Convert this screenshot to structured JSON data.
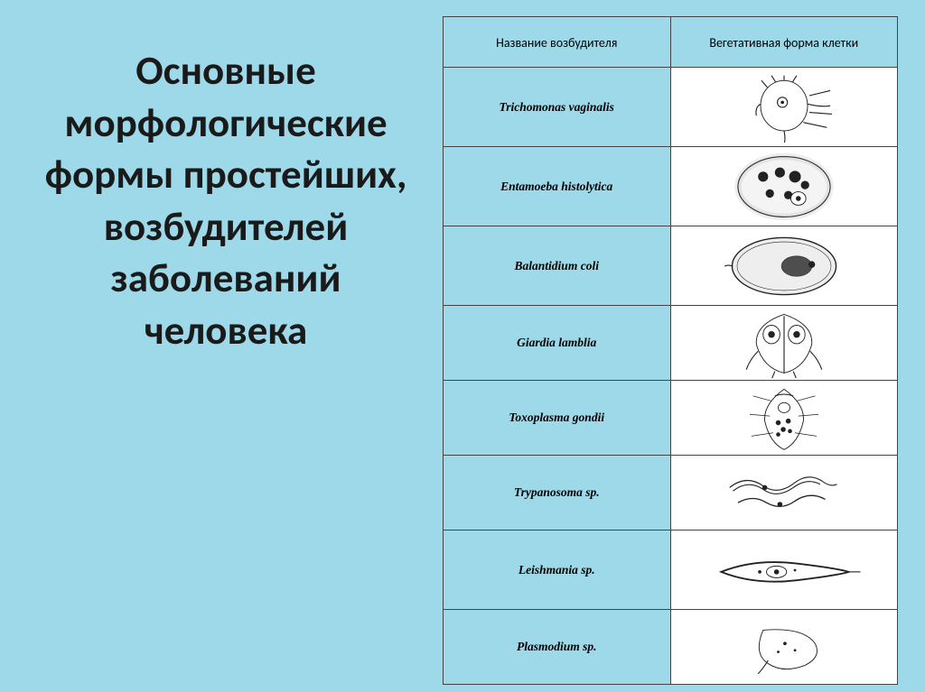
{
  "title": "Основные морфологические формы простейших, возбудителей заболеваний человека",
  "table": {
    "headers": [
      "Название возбудителя",
      "Вегетативная форма клетки"
    ],
    "rows": [
      {
        "name": "Trichomonas vaginalis",
        "shape": "trichomonas",
        "h": "tall"
      },
      {
        "name": "Entamoeba histolytica",
        "shape": "entamoeba",
        "h": "tall"
      },
      {
        "name": "Balantidium coli",
        "shape": "balantidium",
        "h": "tall"
      },
      {
        "name": "Giardia lamblia",
        "shape": "giardia",
        "h": ""
      },
      {
        "name": "Toxoplasma gondii",
        "shape": "toxoplasma",
        "h": ""
      },
      {
        "name": "Trypanosoma sp.",
        "shape": "trypanosoma",
        "h": "short"
      },
      {
        "name": "Leishmania sp.",
        "shape": "leishmania",
        "h": "tall"
      },
      {
        "name": "Plasmodium sp.",
        "shape": "plasmodium",
        "h": ""
      }
    ]
  },
  "style": {
    "background": "#9dd9e8",
    "text_color": "#1a1a1a",
    "border_color": "#444444",
    "cell_bg": "#ffffff",
    "title_fontsize": 45
  }
}
